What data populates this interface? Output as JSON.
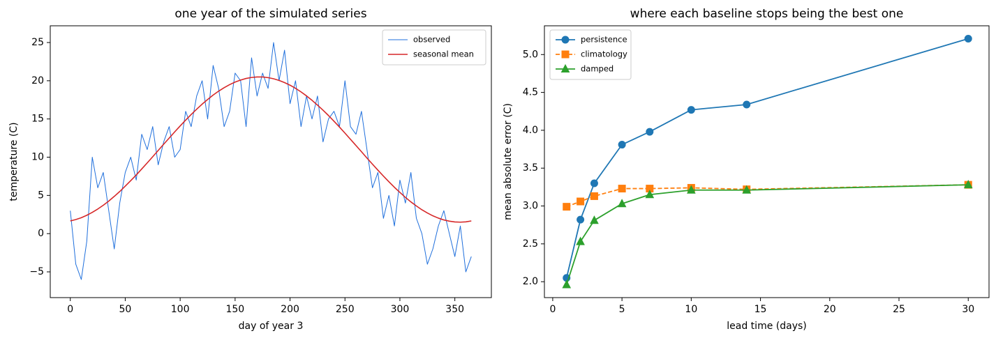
{
  "chart_data": [
    {
      "type": "line",
      "title": "one year of the simulated series",
      "xlabel": "day of year 3",
      "ylabel": "temperature (C)",
      "x": [
        0,
        5,
        10,
        15,
        20,
        25,
        30,
        35,
        40,
        45,
        50,
        55,
        60,
        65,
        70,
        75,
        80,
        85,
        90,
        95,
        100,
        105,
        110,
        115,
        120,
        125,
        130,
        135,
        140,
        145,
        150,
        155,
        160,
        165,
        170,
        175,
        180,
        185,
        190,
        195,
        200,
        205,
        210,
        215,
        220,
        225,
        230,
        235,
        240,
        245,
        250,
        255,
        260,
        265,
        270,
        275,
        280,
        285,
        290,
        295,
        300,
        305,
        310,
        315,
        320,
        325,
        330,
        335,
        340,
        345,
        350,
        355,
        360,
        365
      ],
      "series": [
        {
          "name": "observed",
          "color": "#1f6fdc",
          "width": 1,
          "values": [
            3,
            -4,
            -6,
            -1,
            10,
            6,
            8,
            3,
            -2,
            4,
            8,
            10,
            7,
            13,
            11,
            14,
            9,
            12,
            14,
            10,
            11,
            16,
            14,
            18,
            20,
            15,
            22,
            19,
            14,
            16,
            21,
            20,
            14,
            23,
            18,
            21,
            19,
            25,
            20,
            24,
            17,
            20,
            14,
            18,
            15,
            18,
            12,
            15,
            16,
            14,
            20,
            14,
            13,
            16,
            11,
            6,
            8,
            2,
            5,
            1,
            7,
            4,
            8,
            2,
            0,
            -4,
            -2,
            1,
            3,
            0,
            -3,
            1,
            -5,
            -3
          ]
        },
        {
          "name": "seasonal mean",
          "color": "#d62728",
          "width": 1.6,
          "values": [
            1.66,
            1.84,
            2.08,
            2.4,
            2.78,
            3.22,
            3.71,
            4.26,
            4.87,
            5.51,
            6.21,
            6.93,
            7.67,
            8.46,
            9.25,
            10.06,
            10.88,
            11.7,
            12.5,
            13.31,
            14.09,
            14.85,
            15.58,
            16.28,
            16.94,
            17.55,
            18.13,
            18.64,
            19.09,
            19.49,
            19.83,
            20.09,
            20.3,
            20.43,
            20.49,
            20.49,
            20.41,
            20.26,
            20.04,
            19.76,
            19.42,
            19.01,
            18.54,
            18.02,
            17.44,
            16.81,
            16.15,
            15.45,
            14.7,
            13.94,
            13.15,
            12.34,
            11.53,
            10.72,
            9.89,
            9.09,
            8.3,
            7.53,
            6.78,
            6.06,
            5.39,
            4.74,
            4.15,
            3.62,
            3.12,
            2.7,
            2.33,
            2.03,
            1.79,
            1.63,
            1.53,
            1.5,
            1.54,
            1.66
          ]
        }
      ],
      "xlim": [
        -18.25,
        383.25
      ],
      "ylim": [
        -8.37,
        27.19
      ],
      "xticks": [
        0,
        50,
        100,
        150,
        200,
        250,
        300,
        350
      ],
      "yticks": [
        {
          "value": -5,
          "label": "−5"
        },
        0,
        5,
        10,
        15,
        20,
        25
      ],
      "legend_loc": "upper right"
    },
    {
      "type": "line",
      "title": "where each baseline stops being the best one",
      "xlabel": "lead time (days)",
      "ylabel": "mean absolute error (C)",
      "x": [
        1,
        2,
        3,
        5,
        7,
        10,
        14,
        30
      ],
      "series": [
        {
          "name": "persistence",
          "color": "#1f77b4",
          "marker": "circle",
          "dash": false,
          "values": [
            2.05,
            2.82,
            3.3,
            3.81,
            3.98,
            4.27,
            4.34,
            5.21
          ]
        },
        {
          "name": "climatology",
          "color": "#ff7f0e",
          "marker": "square",
          "dash": true,
          "values": [
            2.99,
            3.06,
            3.13,
            3.23,
            3.23,
            3.24,
            3.22,
            3.28
          ]
        },
        {
          "name": "damped",
          "color": "#2ca02c",
          "marker": "triangle",
          "dash": false,
          "values": [
            1.96,
            2.53,
            2.81,
            3.03,
            3.15,
            3.21,
            3.21,
            3.28
          ]
        }
      ],
      "xlim": [
        -0.6,
        31.5
      ],
      "ylim": [
        1.79,
        5.38
      ],
      "xticks": [
        0,
        5,
        10,
        15,
        20,
        25,
        30
      ],
      "yticks": [
        {
          "value": 2,
          "label": "2.0"
        },
        {
          "value": 2.5,
          "label": "2.5"
        },
        {
          "value": 3,
          "label": "3.0"
        },
        {
          "value": 3.5,
          "label": "3.5"
        },
        {
          "value": 4,
          "label": "4.0"
        },
        {
          "value": 4.5,
          "label": "4.5"
        },
        {
          "value": 5,
          "label": "5.0"
        }
      ],
      "legend_loc": "upper left"
    }
  ]
}
